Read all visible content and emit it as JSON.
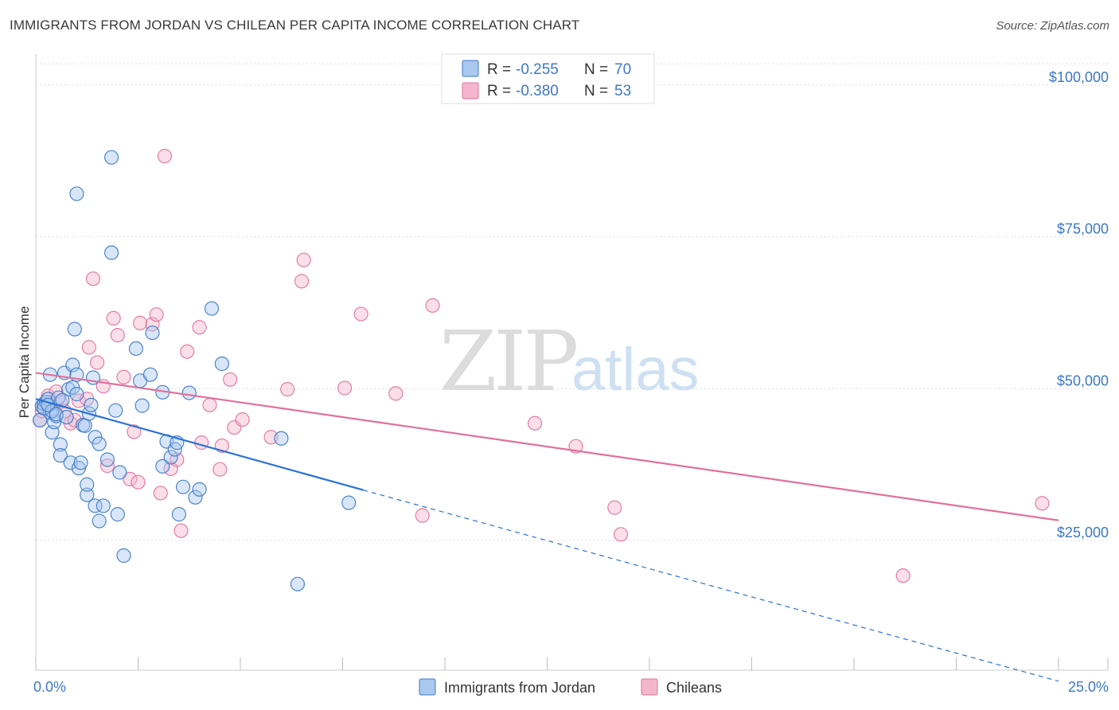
{
  "title": "IMMIGRANTS FROM JORDAN VS CHILEAN PER CAPITA INCOME CORRELATION CHART",
  "source": "Source: ZipAtlas.com",
  "watermark": {
    "zip": "ZIP",
    "atlas": "atlas"
  },
  "colors": {
    "blue": "#3d78c8",
    "blue_fill": "#a9c8ef",
    "blue_line": "#2b72d4",
    "pink": "#e0719c",
    "pink_fill": "#f4b6cb",
    "pink_line": "#e0719c",
    "grid": "#dddddd"
  },
  "legend": {
    "r_label": "R =",
    "n_label": "N =",
    "series": [
      {
        "name": "Immigrants from Jordan",
        "r": "-0.255",
        "n": "70"
      },
      {
        "name": "Chileans",
        "r": "-0.380",
        "n": "53"
      }
    ]
  },
  "chart_data": {
    "type": "scatter",
    "title": "IMMIGRANTS FROM JORDAN VS CHILEAN PER CAPITA INCOME CORRELATION CHART",
    "xlabel": "",
    "ylabel": "Per Capita Income",
    "xlim": [
      0,
      25
    ],
    "ylim": [
      0,
      105000
    ],
    "x_tick_labels": [
      "0.0%",
      "25.0%"
    ],
    "y_ticks": [
      25000,
      50000,
      75000,
      100000
    ],
    "y_tick_labels": [
      "$25,000",
      "$50,000",
      "$75,000",
      "$100,000"
    ],
    "grid": true,
    "legend_position": "top-center",
    "series": [
      {
        "name": "Immigrants from Jordan",
        "color": "#3d78c8",
        "r": -0.255,
        "n": 70,
        "trend": {
          "x0": 0,
          "y0": 47000,
          "x1": 8.0,
          "y1": 32000,
          "dashed_to_x": 25,
          "dashed_to_y": 500
        },
        "points": [
          [
            0.1,
            43500
          ],
          [
            0.15,
            45800
          ],
          [
            0.2,
            46200
          ],
          [
            0.25,
            46500
          ],
          [
            0.3,
            47000
          ],
          [
            0.35,
            51000
          ],
          [
            0.35,
            44800
          ],
          [
            0.4,
            41500
          ],
          [
            0.45,
            43200
          ],
          [
            0.5,
            44200
          ],
          [
            0.55,
            47200
          ],
          [
            0.6,
            39500
          ],
          [
            0.6,
            37700
          ],
          [
            0.7,
            51300
          ],
          [
            0.8,
            48600
          ],
          [
            0.85,
            36500
          ],
          [
            0.9,
            48900
          ],
          [
            0.9,
            52600
          ],
          [
            0.95,
            58500
          ],
          [
            1.0,
            80800
          ],
          [
            1.0,
            51000
          ],
          [
            1.05,
            35600
          ],
          [
            1.1,
            36500
          ],
          [
            1.15,
            42700
          ],
          [
            1.2,
            42600
          ],
          [
            1.25,
            31200
          ],
          [
            1.25,
            32900
          ],
          [
            1.3,
            44600
          ],
          [
            1.35,
            46000
          ],
          [
            1.4,
            50500
          ],
          [
            1.45,
            29400
          ],
          [
            1.45,
            40700
          ],
          [
            1.55,
            26900
          ],
          [
            1.55,
            39600
          ],
          [
            1.65,
            29400
          ],
          [
            1.75,
            37000
          ],
          [
            1.85,
            86800
          ],
          [
            1.85,
            71100
          ],
          [
            1.95,
            45100
          ],
          [
            2.0,
            28000
          ],
          [
            2.05,
            34900
          ],
          [
            2.15,
            21200
          ],
          [
            2.45,
            55300
          ],
          [
            2.55,
            50000
          ],
          [
            2.6,
            45900
          ],
          [
            2.8,
            51000
          ],
          [
            2.85,
            57900
          ],
          [
            3.1,
            48100
          ],
          [
            3.1,
            35900
          ],
          [
            3.2,
            40000
          ],
          [
            3.3,
            37400
          ],
          [
            3.4,
            38700
          ],
          [
            3.45,
            39800
          ],
          [
            3.5,
            28000
          ],
          [
            3.6,
            32500
          ],
          [
            3.75,
            48000
          ],
          [
            3.9,
            30800
          ],
          [
            4.0,
            32100
          ],
          [
            4.3,
            61900
          ],
          [
            4.55,
            52800
          ],
          [
            6.0,
            40500
          ],
          [
            6.4,
            16500
          ],
          [
            7.65,
            29900
          ],
          [
            0.2,
            45500
          ],
          [
            0.4,
            45000
          ],
          [
            0.65,
            46800
          ],
          [
            1.0,
            47800
          ],
          [
            0.3,
            46000
          ],
          [
            0.5,
            44500
          ],
          [
            0.75,
            44000
          ]
        ]
      },
      {
        "name": "Chileans",
        "color": "#e0719c",
        "r": -0.38,
        "n": 53,
        "trend": {
          "x0": 0,
          "y0": 51300,
          "x1": 25,
          "y1": 27000
        },
        "points": [
          [
            0.1,
            43500
          ],
          [
            0.15,
            45000
          ],
          [
            0.3,
            47500
          ],
          [
            0.5,
            48200
          ],
          [
            0.6,
            46500
          ],
          [
            0.7,
            45000
          ],
          [
            0.85,
            43000
          ],
          [
            0.95,
            43500
          ],
          [
            1.05,
            46700
          ],
          [
            1.25,
            47000
          ],
          [
            1.3,
            55500
          ],
          [
            1.4,
            66800
          ],
          [
            1.5,
            53000
          ],
          [
            1.65,
            49100
          ],
          [
            1.75,
            36000
          ],
          [
            1.9,
            60300
          ],
          [
            2.0,
            57500
          ],
          [
            2.15,
            50600
          ],
          [
            2.3,
            33800
          ],
          [
            2.4,
            41600
          ],
          [
            2.5,
            33300
          ],
          [
            2.55,
            59500
          ],
          [
            2.85,
            59300
          ],
          [
            2.95,
            60900
          ],
          [
            3.05,
            31500
          ],
          [
            3.15,
            87000
          ],
          [
            3.3,
            35500
          ],
          [
            3.45,
            37000
          ],
          [
            3.55,
            25300
          ],
          [
            3.7,
            54800
          ],
          [
            4.0,
            58800
          ],
          [
            4.05,
            39800
          ],
          [
            4.25,
            46000
          ],
          [
            4.5,
            35400
          ],
          [
            4.55,
            39300
          ],
          [
            4.75,
            50200
          ],
          [
            4.85,
            42300
          ],
          [
            5.05,
            43600
          ],
          [
            5.75,
            40700
          ],
          [
            6.15,
            48600
          ],
          [
            6.55,
            69900
          ],
          [
            6.5,
            66400
          ],
          [
            7.55,
            48800
          ],
          [
            7.95,
            61000
          ],
          [
            8.8,
            47900
          ],
          [
            9.45,
            27800
          ],
          [
            9.7,
            62400
          ],
          [
            12.2,
            43000
          ],
          [
            13.2,
            39200
          ],
          [
            14.15,
            29100
          ],
          [
            14.3,
            24700
          ],
          [
            21.2,
            17900
          ],
          [
            24.6,
            29800
          ]
        ]
      }
    ]
  }
}
